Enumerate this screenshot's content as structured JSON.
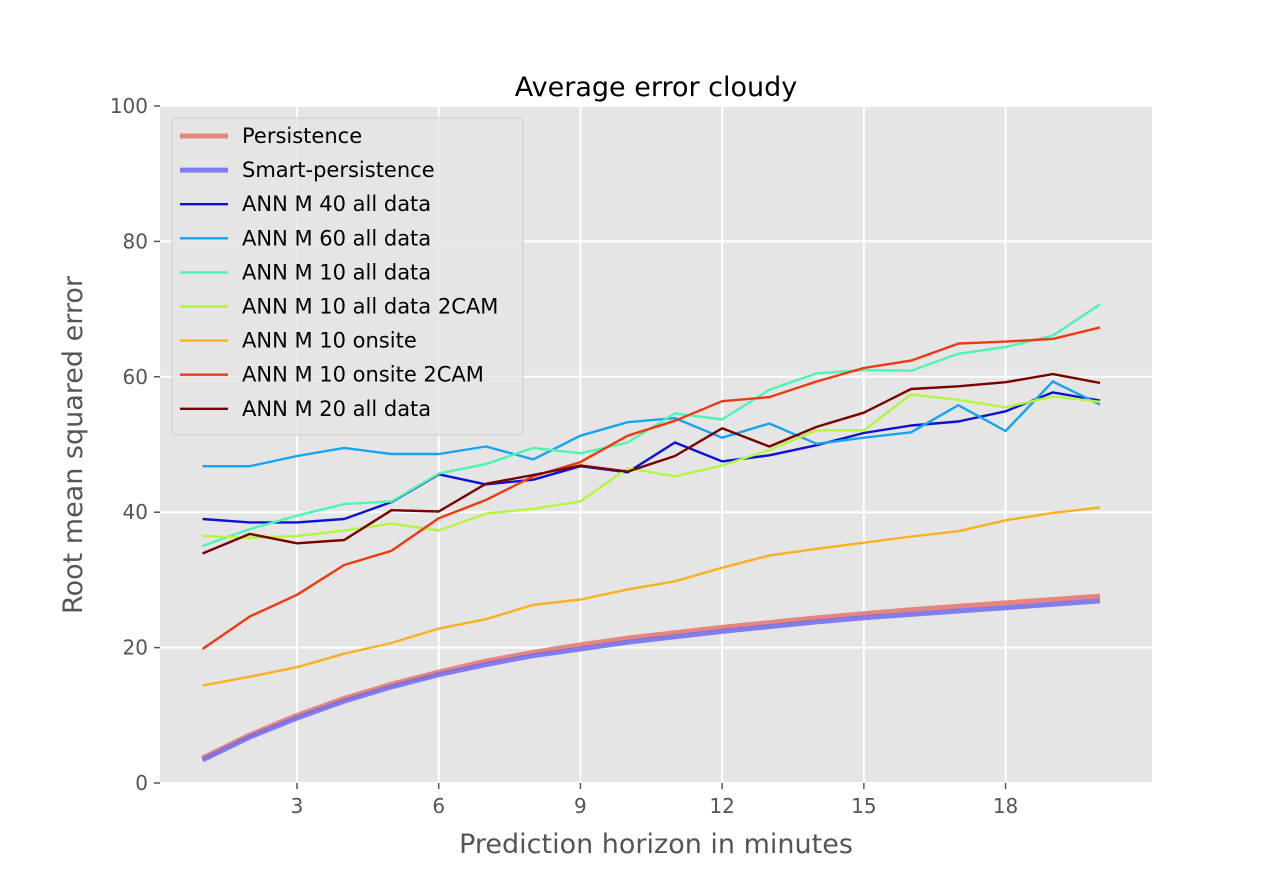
{
  "chart_data": {
    "type": "line",
    "title": "Average error cloudy",
    "xlabel": "Prediction horizon in minutes",
    "ylabel": "Root mean squared error",
    "xlim": [
      0.1,
      21.1
    ],
    "ylim": [
      0,
      100
    ],
    "xticks": [
      3,
      6,
      9,
      12,
      15,
      18
    ],
    "xtick_labels": [
      "3",
      "6",
      "9",
      "12",
      "15",
      "18"
    ],
    "yticks": [
      0,
      20,
      40,
      60,
      80,
      100
    ],
    "ytick_labels": [
      "0",
      "20",
      "40",
      "60",
      "80",
      "100"
    ],
    "grid": true,
    "legend_position": "top-left",
    "background_color": "#e5e5e5",
    "grid_color": "#ffffff",
    "x": [
      1,
      2,
      3,
      4,
      5,
      6,
      7,
      8,
      9,
      10,
      11,
      12,
      13,
      14,
      15,
      16,
      17,
      18,
      19,
      20
    ],
    "series": [
      {
        "name": "Persistence",
        "color": "#e8736c",
        "thick": true,
        "values": [
          3.7,
          7.1,
          10.0,
          12.5,
          14.6,
          16.4,
          18.0,
          19.3,
          20.4,
          21.4,
          22.2,
          23.0,
          23.7,
          24.4,
          25.0,
          25.6,
          26.1,
          26.6,
          27.1,
          27.6
        ]
      },
      {
        "name": "Smart-persistence",
        "color": "#6f6cee",
        "thick": true,
        "values": [
          3.4,
          6.8,
          9.6,
          12.1,
          14.2,
          16.0,
          17.5,
          18.8,
          19.8,
          20.8,
          21.6,
          22.4,
          23.1,
          23.8,
          24.4,
          24.9,
          25.4,
          25.9,
          26.4,
          26.9
        ]
      },
      {
        "name": "ANN M 40 all data",
        "color": "#0a12d8",
        "values": [
          39.0,
          38.5,
          38.5,
          39.0,
          41.5,
          45.6,
          44.1,
          44.8,
          46.8,
          45.9,
          50.3,
          47.5,
          48.4,
          49.9,
          51.7,
          52.8,
          53.4,
          54.9,
          57.7,
          56.5
        ]
      },
      {
        "name": "ANN M 60 all data",
        "color": "#16a3ef",
        "values": [
          46.8,
          46.8,
          48.3,
          49.5,
          48.6,
          48.6,
          49.7,
          47.8,
          51.3,
          53.3,
          53.9,
          51.0,
          53.1,
          50.1,
          51.0,
          51.8,
          55.8,
          52.0,
          59.3,
          55.9
        ]
      },
      {
        "name": "ANN M 10 all data",
        "color": "#4cf5b0",
        "values": [
          35.0,
          37.5,
          39.5,
          41.2,
          41.6,
          45.7,
          47.1,
          49.5,
          48.7,
          50.3,
          54.6,
          53.7,
          58.1,
          60.5,
          61.0,
          60.9,
          63.4,
          64.4,
          66.1,
          70.7
        ]
      },
      {
        "name": "ANN M 10 all data 2CAM",
        "color": "#b4f53f",
        "values": [
          36.5,
          36.2,
          36.5,
          37.3,
          38.3,
          37.3,
          39.8,
          40.5,
          41.6,
          46.5,
          45.3,
          46.9,
          49.2,
          52.1,
          52.1,
          57.4,
          56.6,
          55.5,
          57.1,
          56.3
        ]
      },
      {
        "name": "ANN M 10 onsite",
        "color": "#fbb01f",
        "values": [
          14.4,
          15.7,
          17.1,
          19.1,
          20.7,
          22.8,
          24.2,
          26.3,
          27.1,
          28.6,
          29.8,
          31.8,
          33.6,
          34.6,
          35.5,
          36.4,
          37.2,
          38.8,
          39.9,
          40.7
        ]
      },
      {
        "name": "ANN M 10 onsite 2CAM",
        "color": "#ee3a0f",
        "values": [
          19.8,
          24.6,
          27.8,
          32.2,
          34.3,
          39.1,
          41.8,
          45.3,
          47.4,
          51.3,
          53.5,
          56.4,
          57.0,
          59.3,
          61.3,
          62.4,
          64.9,
          65.2,
          65.6,
          67.3
        ]
      },
      {
        "name": "ANN M 20 all data",
        "color": "#7a0000",
        "values": [
          33.9,
          36.8,
          35.4,
          35.9,
          40.3,
          40.1,
          44.2,
          45.5,
          46.9,
          46.0,
          48.3,
          52.4,
          49.7,
          52.6,
          54.7,
          58.2,
          58.6,
          59.2,
          60.4,
          59.1
        ]
      }
    ]
  }
}
